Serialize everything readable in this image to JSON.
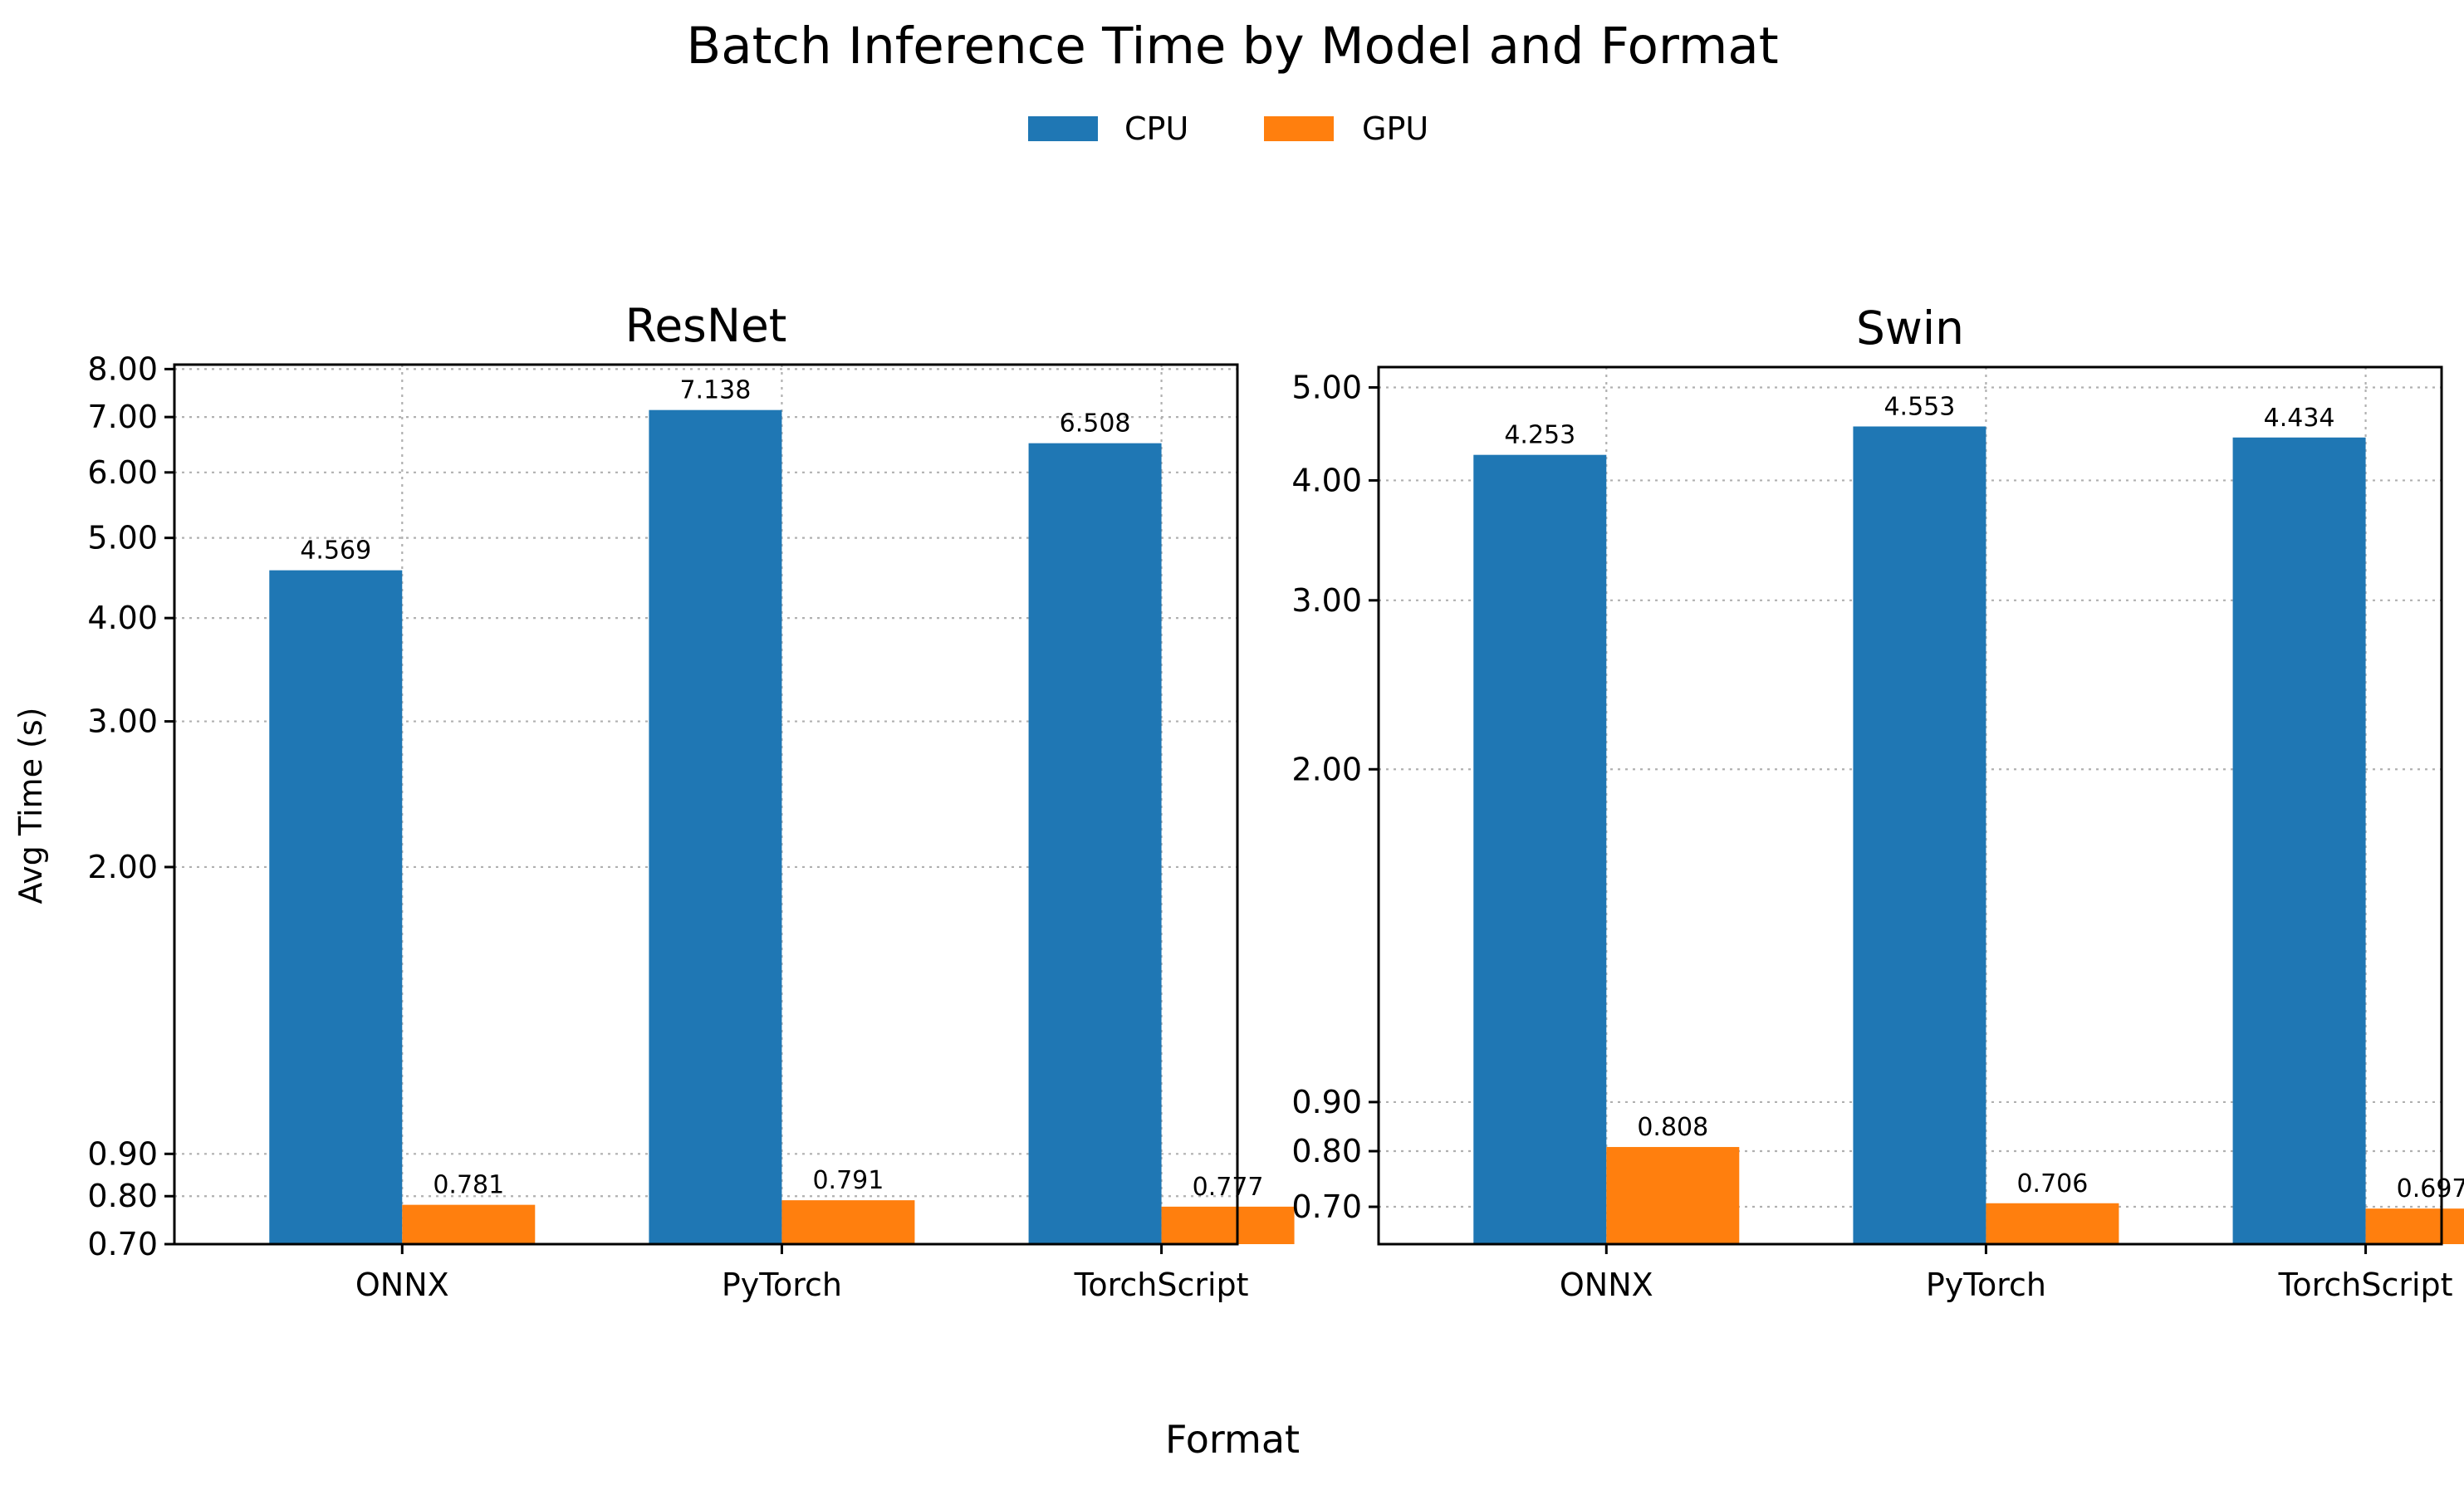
{
  "title": "Batch Inference Time by Model and Format",
  "xlabel": "Format",
  "legend": {
    "placement": "top-center",
    "entries": [
      {
        "label": "CPU",
        "color": "#1f77b4"
      },
      {
        "label": "GPU",
        "color": "#ff7f0e"
      }
    ]
  },
  "chart_data": [
    {
      "type": "bar",
      "title": "ResNet",
      "xlabel": "",
      "ylabel": "Avg Time (s)",
      "y_scale": "log",
      "ylim": [
        0.7,
        8.1
      ],
      "grid": true,
      "yticks": [
        0.7,
        0.8,
        0.9,
        2.0,
        3.0,
        4.0,
        5.0,
        6.0,
        7.0,
        8.0
      ],
      "ytick_labels": [
        "0.70",
        "0.80",
        "0.90",
        "2.00",
        "3.00",
        "4.00",
        "5.00",
        "6.00",
        "7.00",
        "8.00"
      ],
      "categories": [
        "ONNX",
        "PyTorch",
        "TorchScript"
      ],
      "series": [
        {
          "name": "CPU",
          "color": "#1f77b4",
          "values": [
            4.569,
            7.138,
            6.508
          ],
          "labels": [
            "4.569",
            "7.138",
            "6.508"
          ]
        },
        {
          "name": "GPU",
          "color": "#ff7f0e",
          "values": [
            0.781,
            0.791,
            0.777
          ],
          "labels": [
            "0.781",
            "0.791",
            "0.777"
          ]
        }
      ]
    },
    {
      "type": "bar",
      "title": "Swin",
      "xlabel": "",
      "ylabel": "",
      "y_scale": "log",
      "ylim": [
        0.64,
        5.25
      ],
      "grid": true,
      "yticks": [
        0.7,
        0.8,
        0.9,
        2.0,
        3.0,
        4.0,
        5.0
      ],
      "ytick_labels": [
        "0.70",
        "0.80",
        "0.90",
        "2.00",
        "3.00",
        "4.00",
        "5.00"
      ],
      "categories": [
        "ONNX",
        "PyTorch",
        "TorchScript"
      ],
      "series": [
        {
          "name": "CPU",
          "color": "#1f77b4",
          "values": [
            4.253,
            4.553,
            4.434
          ],
          "labels": [
            "4.253",
            "4.553",
            "4.434"
          ]
        },
        {
          "name": "GPU",
          "color": "#ff7f0e",
          "values": [
            0.808,
            0.706,
            0.697
          ],
          "labels": [
            "0.808",
            "0.706",
            "0.697"
          ]
        }
      ]
    }
  ]
}
